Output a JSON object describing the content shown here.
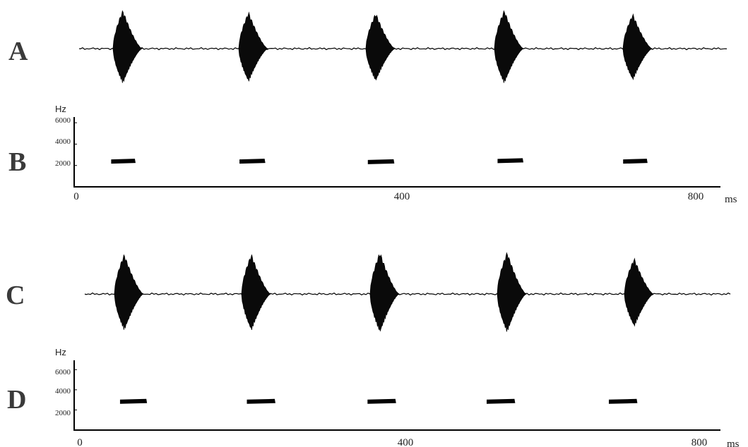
{
  "panels": {
    "A": "A",
    "B": "B",
    "C": "C",
    "D": "D"
  },
  "chart_data": [
    {
      "panel": "A",
      "type": "area",
      "description_kind": "oscillogram",
      "pulse_times_ms": [
        66,
        244,
        424,
        606,
        788
      ],
      "relative_peak_amplitude": [
        1.0,
        0.95,
        0.93,
        1.0,
        0.9
      ]
    },
    {
      "panel": "B",
      "type": "scatter",
      "title": "",
      "ylabel": "Hz",
      "xunit": "ms",
      "ylim": [
        0,
        6000
      ],
      "xlim": [
        0,
        900
      ],
      "y_ticks": [
        2000,
        4000,
        6000
      ],
      "x_ticks": [
        0,
        400,
        800
      ],
      "notes": [
        {
          "start_ms": 50,
          "end_ms": 84,
          "freq_hz": 2400
        },
        {
          "start_ms": 234,
          "end_ms": 270,
          "freq_hz": 2400
        },
        {
          "start_ms": 418,
          "end_ms": 455,
          "freq_hz": 2350
        },
        {
          "start_ms": 604,
          "end_ms": 640,
          "freq_hz": 2450
        },
        {
          "start_ms": 784,
          "end_ms": 818,
          "freq_hz": 2400
        }
      ]
    },
    {
      "panel": "C",
      "type": "area",
      "description_kind": "oscillogram",
      "pulse_times_ms": [
        68,
        248,
        430,
        610,
        790
      ],
      "relative_peak_amplitude": [
        0.95,
        0.95,
        1.0,
        1.0,
        0.85
      ]
    },
    {
      "panel": "D",
      "type": "scatter",
      "title": "",
      "ylabel": "Hz",
      "xunit": "ms",
      "ylim": [
        0,
        7000
      ],
      "xlim": [
        0,
        900
      ],
      "y_ticks": [
        2000,
        4000,
        6000
      ],
      "x_ticks": [
        0,
        400,
        800
      ],
      "notes": [
        {
          "start_ms": 52,
          "end_ms": 86,
          "freq_hz": 2850
        },
        {
          "start_ms": 216,
          "end_ms": 252,
          "freq_hz": 2850
        },
        {
          "start_ms": 372,
          "end_ms": 408,
          "freq_hz": 2850
        },
        {
          "start_ms": 526,
          "end_ms": 562,
          "freq_hz": 2850
        },
        {
          "start_ms": 684,
          "end_ms": 720,
          "freq_hz": 2850
        }
      ]
    }
  ]
}
